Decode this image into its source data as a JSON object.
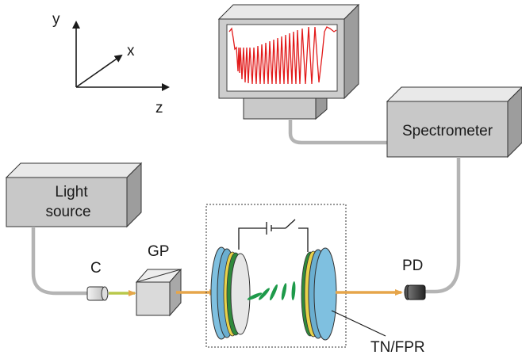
{
  "axes": {
    "y_label": "y",
    "x_label": "x",
    "z_label": "z"
  },
  "light_source": {
    "line1": "Light",
    "line2": "source"
  },
  "spectrometer": {
    "label": "Spectrometer"
  },
  "components": {
    "collimator": "C",
    "glan_polarizer": "GP",
    "photodetector": "PD",
    "sample": "TN/FPR"
  },
  "colors": {
    "box_gray": "#c8c8c8",
    "fiber": "#b4b4b4",
    "beam": "#e6a54a",
    "beam_green": "#b8c84a",
    "plate_blue": "#7fc0e0",
    "lc_green": "#1e9a4a",
    "spectrum_red": "#e21a1a"
  }
}
